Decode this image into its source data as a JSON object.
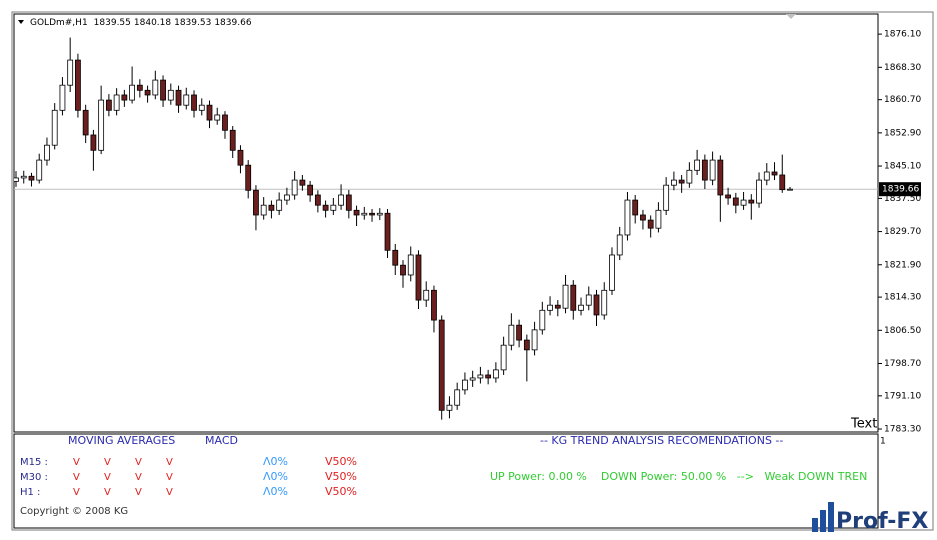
{
  "chart_data": {
    "type": "candlestick",
    "header": {
      "symbol": "GOLDm#,H1"
    },
    "values": [
      [
        1841.5,
        1843.9,
        1840.2,
        1842.3
      ],
      [
        1842.3,
        1844.0,
        1841.0,
        1842.7
      ],
      [
        1842.7,
        1843.5,
        1840.3,
        1841.8
      ],
      [
        1841.8,
        1848.0,
        1841.0,
        1846.5
      ],
      [
        1846.5,
        1851.8,
        1845.2,
        1850.0
      ],
      [
        1850.0,
        1859.9,
        1849.0,
        1858.2
      ],
      [
        1858.2,
        1866.0,
        1857.0,
        1864.1
      ],
      [
        1864.1,
        1875.3,
        1862.5,
        1870.0
      ],
      [
        1870.0,
        1871.5,
        1856.5,
        1858.2
      ],
      [
        1858.2,
        1859.5,
        1850.5,
        1852.4
      ],
      [
        1852.4,
        1853.6,
        1844.0,
        1848.8
      ],
      [
        1848.8,
        1864.0,
        1847.9,
        1860.6
      ],
      [
        1860.6,
        1862.0,
        1856.8,
        1858.2
      ],
      [
        1858.2,
        1863.4,
        1857.0,
        1861.8
      ],
      [
        1861.8,
        1863.0,
        1859.0,
        1860.6
      ],
      [
        1860.6,
        1868.5,
        1859.8,
        1864.1
      ],
      [
        1864.1,
        1865.5,
        1861.2,
        1862.9
      ],
      [
        1862.9,
        1864.0,
        1860.0,
        1861.8
      ],
      [
        1861.8,
        1867.5,
        1860.8,
        1865.3
      ],
      [
        1865.3,
        1866.4,
        1859.0,
        1860.6
      ],
      [
        1860.6,
        1864.5,
        1859.5,
        1862.9
      ],
      [
        1862.9,
        1864.0,
        1857.6,
        1859.4
      ],
      [
        1859.4,
        1863.5,
        1858.4,
        1861.8
      ],
      [
        1861.8,
        1862.9,
        1856.5,
        1858.2
      ],
      [
        1858.2,
        1861.0,
        1857.0,
        1859.4
      ],
      [
        1859.4,
        1860.5,
        1854.0,
        1855.9
      ],
      [
        1855.9,
        1858.8,
        1854.8,
        1857.1
      ],
      [
        1857.1,
        1858.0,
        1851.5,
        1853.5
      ],
      [
        1853.5,
        1854.5,
        1847.0,
        1848.8
      ],
      [
        1848.8,
        1850.0,
        1843.4,
        1845.3
      ],
      [
        1845.3,
        1846.5,
        1837.5,
        1839.4
      ],
      [
        1839.4,
        1840.6,
        1830.0,
        1833.6
      ],
      [
        1833.6,
        1837.8,
        1832.5,
        1835.9
      ],
      [
        1835.9,
        1837.0,
        1832.8,
        1834.7
      ],
      [
        1834.7,
        1838.9,
        1833.6,
        1837.1
      ],
      [
        1837.1,
        1840.0,
        1836.0,
        1838.3
      ],
      [
        1838.3,
        1843.9,
        1837.2,
        1841.8
      ],
      [
        1841.8,
        1843.0,
        1839.3,
        1840.6
      ],
      [
        1840.6,
        1841.6,
        1836.7,
        1838.3
      ],
      [
        1838.3,
        1839.4,
        1834.2,
        1835.9
      ],
      [
        1835.9,
        1837.0,
        1833.0,
        1834.7
      ],
      [
        1834.7,
        1837.6,
        1833.6,
        1835.9
      ],
      [
        1835.9,
        1840.8,
        1834.8,
        1838.3
      ],
      [
        1838.3,
        1839.5,
        1832.8,
        1834.7
      ],
      [
        1834.7,
        1835.8,
        1831.0,
        1833.6
      ],
      [
        1833.6,
        1835.5,
        1832.5,
        1834.0
      ],
      [
        1834.0,
        1835.0,
        1832.0,
        1833.6
      ],
      [
        1833.6,
        1835.2,
        1832.4,
        1834.0
      ],
      [
        1834.0,
        1835.0,
        1823.5,
        1825.3
      ],
      [
        1825.3,
        1826.8,
        1819.5,
        1821.8
      ],
      [
        1821.8,
        1823.0,
        1816.5,
        1819.5
      ],
      [
        1819.5,
        1826.2,
        1818.0,
        1824.2
      ],
      [
        1824.2,
        1825.3,
        1811.5,
        1813.6
      ],
      [
        1813.6,
        1818.0,
        1812.0,
        1815.9
      ],
      [
        1815.9,
        1817.0,
        1806.0,
        1808.9
      ],
      [
        1808.9,
        1810.0,
        1785.5,
        1787.7
      ],
      [
        1787.7,
        1791.0,
        1785.8,
        1788.9
      ],
      [
        1788.9,
        1794.2,
        1787.8,
        1792.5
      ],
      [
        1792.5,
        1796.6,
        1791.4,
        1794.8
      ],
      [
        1794.8,
        1797.0,
        1793.2,
        1795.3
      ],
      [
        1795.3,
        1797.9,
        1794.0,
        1796.0
      ],
      [
        1796.0,
        1797.2,
        1793.8,
        1795.3
      ],
      [
        1795.3,
        1799.0,
        1794.2,
        1797.2
      ],
      [
        1797.2,
        1805.0,
        1796.0,
        1803.0
      ],
      [
        1803.0,
        1810.5,
        1801.8,
        1807.7
      ],
      [
        1807.7,
        1809.0,
        1802.5,
        1804.2
      ],
      [
        1804.2,
        1805.5,
        1794.5,
        1801.9
      ],
      [
        1801.9,
        1808.5,
        1800.6,
        1806.6
      ],
      [
        1806.6,
        1813.2,
        1805.5,
        1811.2
      ],
      [
        1811.2,
        1814.5,
        1810.0,
        1812.4
      ],
      [
        1812.4,
        1813.6,
        1809.8,
        1811.7
      ],
      [
        1811.7,
        1819.5,
        1810.5,
        1817.1
      ],
      [
        1817.1,
        1818.3,
        1809.0,
        1811.2
      ],
      [
        1811.2,
        1814.2,
        1810.0,
        1812.4
      ],
      [
        1812.4,
        1816.8,
        1811.2,
        1814.8
      ],
      [
        1814.8,
        1816.0,
        1807.5,
        1810.1
      ],
      [
        1810.1,
        1817.8,
        1809.0,
        1815.9
      ],
      [
        1815.9,
        1826.0,
        1814.8,
        1824.2
      ],
      [
        1824.2,
        1830.8,
        1823.0,
        1828.9
      ],
      [
        1828.9,
        1839.0,
        1827.6,
        1837.1
      ],
      [
        1837.1,
        1838.3,
        1831.6,
        1833.6
      ],
      [
        1833.6,
        1834.8,
        1830.2,
        1832.4
      ],
      [
        1832.4,
        1833.5,
        1828.3,
        1830.5
      ],
      [
        1830.5,
        1836.6,
        1829.5,
        1834.7
      ],
      [
        1834.7,
        1842.5,
        1833.6,
        1840.6
      ],
      [
        1840.6,
        1843.8,
        1839.4,
        1841.8
      ],
      [
        1841.8,
        1843.0,
        1838.8,
        1841.1
      ],
      [
        1841.1,
        1846.0,
        1840.0,
        1844.1
      ],
      [
        1844.1,
        1848.9,
        1843.0,
        1846.5
      ],
      [
        1846.5,
        1847.8,
        1839.7,
        1841.8
      ],
      [
        1841.8,
        1848.5,
        1840.6,
        1846.5
      ],
      [
        1846.5,
        1847.6,
        1832.0,
        1838.3
      ],
      [
        1838.3,
        1840.0,
        1836.0,
        1837.6
      ],
      [
        1837.6,
        1838.8,
        1834.0,
        1835.9
      ],
      [
        1835.9,
        1839.0,
        1834.8,
        1837.1
      ],
      [
        1837.1,
        1838.5,
        1832.5,
        1836.4
      ],
      [
        1836.4,
        1843.6,
        1835.3,
        1841.8
      ],
      [
        1841.8,
        1845.8,
        1840.6,
        1843.7
      ],
      [
        1843.7,
        1846.0,
        1841.8,
        1843.0
      ],
      [
        1843.0,
        1847.8,
        1838.8,
        1839.55
      ],
      [
        1839.55,
        1840.18,
        1839.53,
        1839.66
      ]
    ],
    "up_color": "#ffffff",
    "down_color": "#6b1f1f",
    "wick_color": "#000000",
    "ylim": [
      1782.6,
      1881.3
    ],
    "yticks": [
      {
        "value": 1876.1,
        "label": "1876.10"
      },
      {
        "value": 1868.3,
        "label": "1868.30"
      },
      {
        "value": 1860.7,
        "label": "1860.70"
      },
      {
        "value": 1852.9,
        "label": "1852.90"
      },
      {
        "value": 1845.1,
        "label": "1845.10"
      },
      {
        "value": 1837.5,
        "label": "1837.50"
      },
      {
        "value": 1829.7,
        "label": "1829.70"
      },
      {
        "value": 1821.9,
        "label": "1821.90"
      },
      {
        "value": 1814.3,
        "label": "1814.30"
      },
      {
        "value": 1806.5,
        "label": "1806.50"
      },
      {
        "value": 1798.7,
        "label": "1798.70"
      },
      {
        "value": 1791.1,
        "label": "1791.10"
      },
      {
        "value": 1783.3,
        "label": "1783.30"
      }
    ],
    "grid": false,
    "annotation": "Text"
  },
  "indicator_panel": {
    "index": "1",
    "headers": [
      "MOVING AVERAGES",
      "MACD",
      "-- KG TREND ANALYSIS RECOMENDATIONS --"
    ],
    "rows": [
      {
        "label": "M15 :",
        "ma": [
          "V",
          "V",
          "V",
          "V"
        ],
        "up": "Λ0%",
        "down": "V50%"
      },
      {
        "label": "M30 :",
        "ma": [
          "V",
          "V",
          "V",
          "V"
        ],
        "up": "Λ0%",
        "down": "V50%"
      },
      {
        "label": "H1  :",
        "ma": [
          "V",
          "V",
          "V",
          "V"
        ],
        "up": "Λ0%",
        "down": "V50%"
      }
    ],
    "power": "UP Power: 0.00 %    DOWN Power: 50.00 %   -->   Weak DOWN TREN",
    "copyright": "Copyright © 2008 KG"
  },
  "logo": "Prof-FX"
}
